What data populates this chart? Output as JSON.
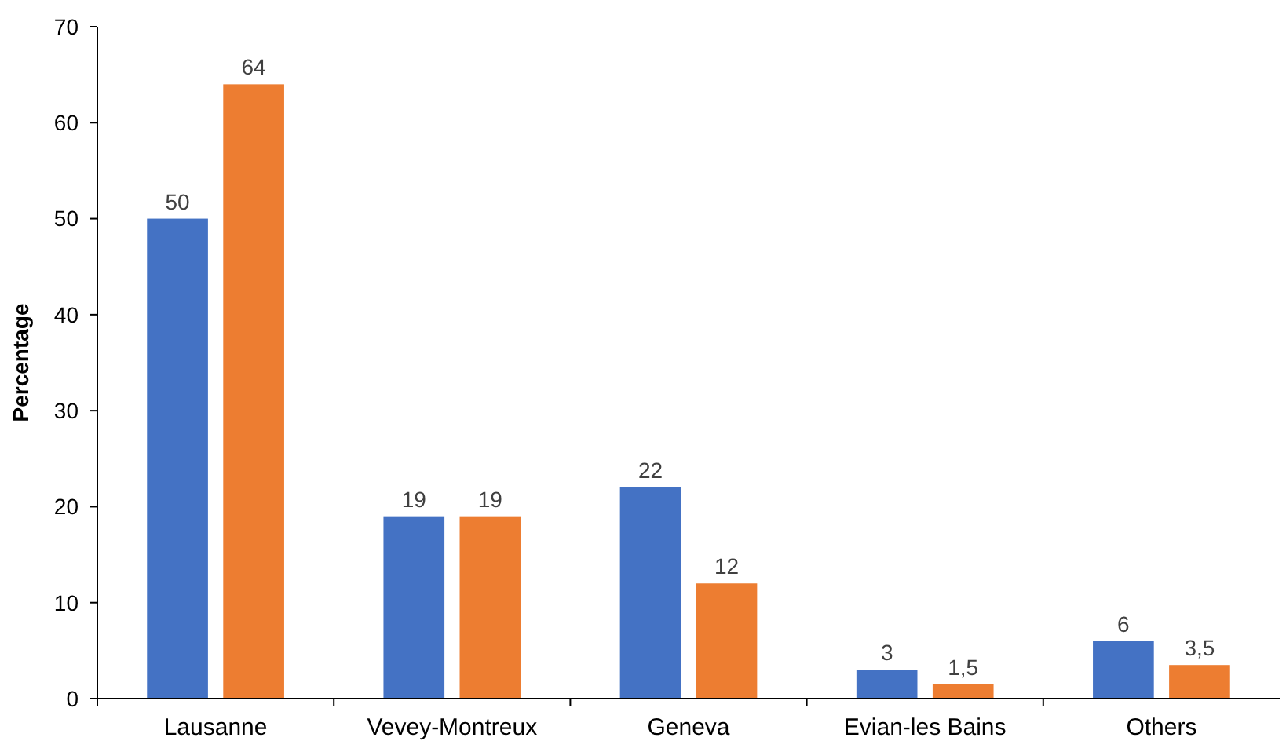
{
  "chart_data": {
    "type": "bar",
    "ylabel": "Percentage",
    "categories": [
      "Lausanne",
      "Vevey-Montreux",
      "Geneva",
      "Evian-les Bains",
      "Others"
    ],
    "series": [
      {
        "color": "#4472c4",
        "values": [
          50,
          19,
          22,
          3,
          6
        ],
        "value_labels": [
          "50",
          "19",
          "22",
          "3",
          "6"
        ]
      },
      {
        "color": "#ed7d31",
        "values": [
          64,
          19,
          12,
          1.5,
          3.5
        ],
        "value_labels": [
          "64",
          "19",
          "12",
          "1,5",
          "3,5"
        ]
      }
    ],
    "ylim": [
      0,
      70
    ],
    "yticks": [
      0,
      10,
      20,
      30,
      40,
      50,
      60,
      70
    ],
    "grid": false
  }
}
